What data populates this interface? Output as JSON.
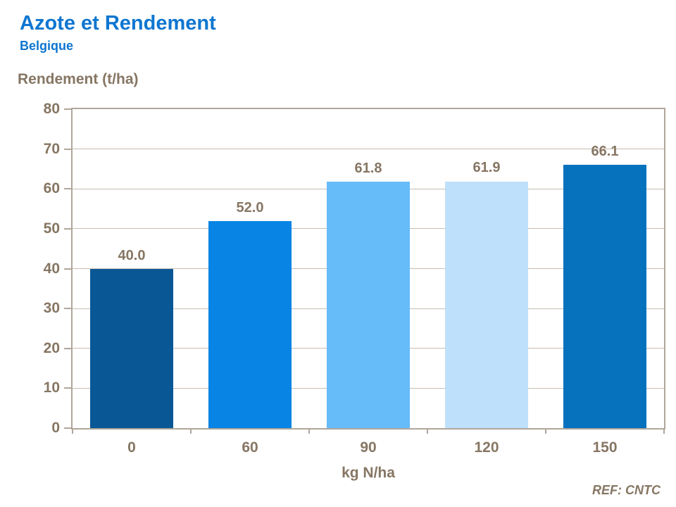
{
  "header": {
    "title": "Azote et Rendement",
    "subtitle": "Belgique"
  },
  "chart_data": {
    "type": "bar",
    "title": "Azote et Rendement",
    "subtitle": "Belgique",
    "categories": [
      "0",
      "60",
      "90",
      "120",
      "150"
    ],
    "values": [
      40.0,
      52.0,
      61.8,
      61.9,
      66.1
    ],
    "value_labels": [
      "40.0",
      "52.0",
      "61.8",
      "61.9",
      "66.1"
    ],
    "xlabel": "kg N/ha",
    "ylabel": "Rendement (t/ha)",
    "ylim": [
      0,
      80
    ],
    "yticks": [
      0,
      10,
      20,
      30,
      40,
      50,
      60,
      70,
      80
    ],
    "grid": true,
    "legend": false,
    "bar_colors": [
      "#0a5796",
      "#0784e4",
      "#66bbf9",
      "#bfe0fb",
      "#0672be"
    ],
    "axis_color": "#b0a69a",
    "gridline_color": "#c6bdb1",
    "text_color": "#867663"
  },
  "footer": {
    "ref": "REF: CNTC"
  },
  "colors": {
    "title_blue": "#0e76d0",
    "label_brown": "#867663"
  }
}
